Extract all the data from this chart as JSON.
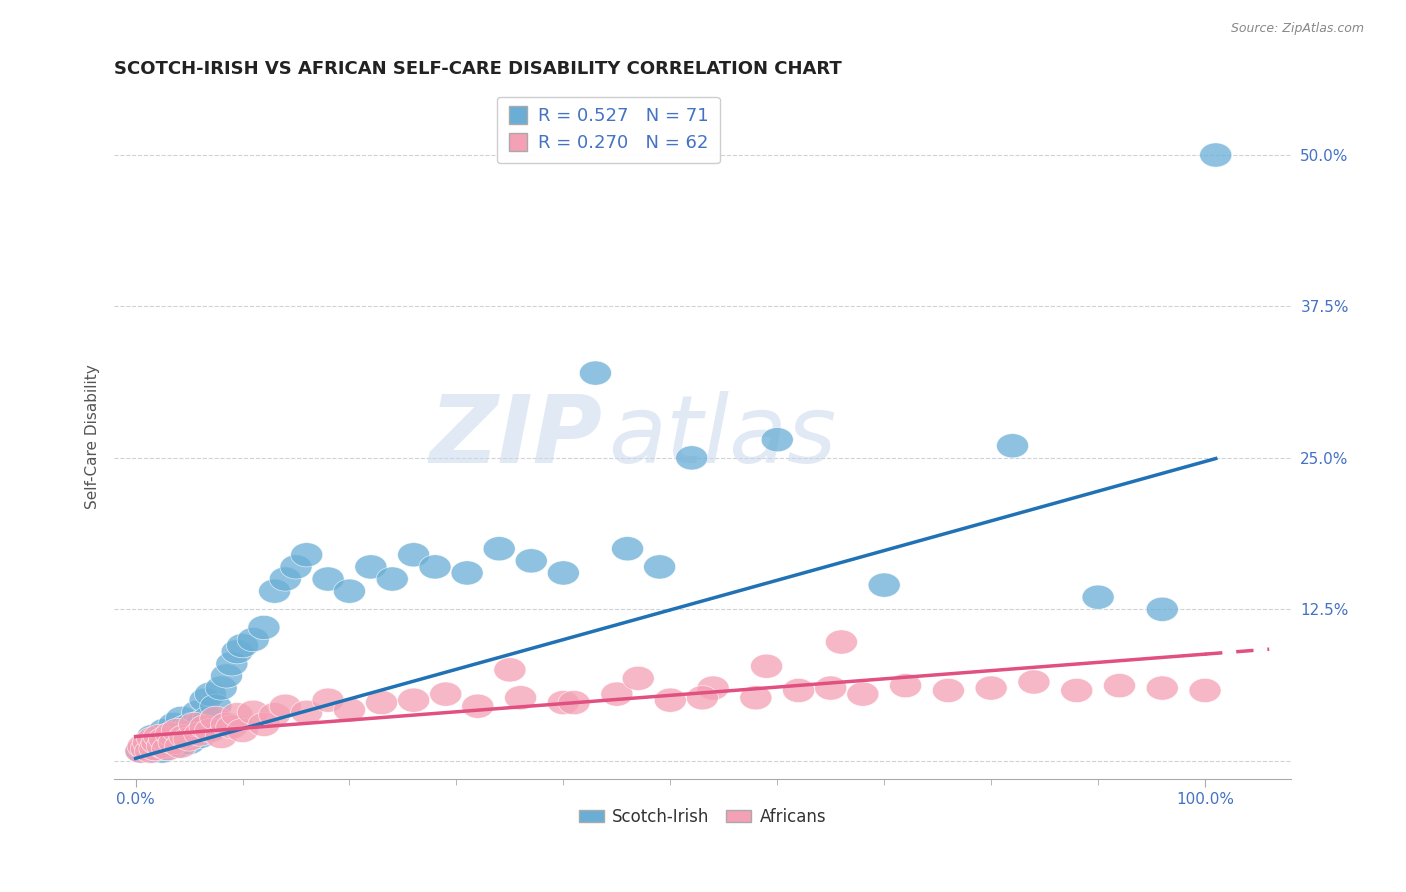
{
  "title": "SCOTCH-IRISH VS AFRICAN SELF-CARE DISABILITY CORRELATION CHART",
  "source": "Source: ZipAtlas.com",
  "ylabel": "Self-Care Disability",
  "yticks": [
    0.0,
    0.125,
    0.25,
    0.375,
    0.5
  ],
  "ytick_labels": [
    "",
    "12.5%",
    "25.0%",
    "37.5%",
    "50.0%"
  ],
  "xlim": [
    -0.02,
    1.08
  ],
  "ylim": [
    -0.015,
    0.55
  ],
  "blue_color": "#6aaed6",
  "pink_color": "#f4a0b5",
  "blue_line_color": "#2171b5",
  "pink_line_color": "#e05080",
  "watermark_zip": "ZIP",
  "watermark_atlas": "atlas",
  "title_fontsize": 13,
  "axis_label_fontsize": 11,
  "tick_fontsize": 11,
  "scotch_irish_x": [
    0.005,
    0.008,
    0.01,
    0.012,
    0.013,
    0.015,
    0.016,
    0.017,
    0.018,
    0.019,
    0.02,
    0.021,
    0.022,
    0.023,
    0.025,
    0.026,
    0.027,
    0.028,
    0.03,
    0.031,
    0.032,
    0.033,
    0.035,
    0.036,
    0.038,
    0.04,
    0.042,
    0.043,
    0.045,
    0.047,
    0.05,
    0.052,
    0.055,
    0.058,
    0.06,
    0.062,
    0.065,
    0.068,
    0.07,
    0.075,
    0.08,
    0.085,
    0.09,
    0.095,
    0.1,
    0.11,
    0.12,
    0.13,
    0.14,
    0.15,
    0.16,
    0.18,
    0.2,
    0.22,
    0.24,
    0.26,
    0.28,
    0.31,
    0.34,
    0.37,
    0.4,
    0.43,
    0.46,
    0.49,
    0.52,
    0.6,
    0.7,
    0.82,
    0.9,
    0.96,
    1.01
  ],
  "scotch_irish_y": [
    0.008,
    0.01,
    0.012,
    0.008,
    0.015,
    0.01,
    0.02,
    0.008,
    0.012,
    0.018,
    0.01,
    0.015,
    0.012,
    0.02,
    0.008,
    0.015,
    0.025,
    0.01,
    0.018,
    0.012,
    0.022,
    0.015,
    0.02,
    0.03,
    0.012,
    0.025,
    0.018,
    0.035,
    0.02,
    0.028,
    0.015,
    0.03,
    0.025,
    0.04,
    0.02,
    0.032,
    0.05,
    0.035,
    0.055,
    0.045,
    0.06,
    0.07,
    0.08,
    0.09,
    0.095,
    0.1,
    0.11,
    0.14,
    0.15,
    0.16,
    0.17,
    0.15,
    0.14,
    0.16,
    0.15,
    0.17,
    0.16,
    0.155,
    0.175,
    0.165,
    0.155,
    0.32,
    0.175,
    0.16,
    0.25,
    0.265,
    0.145,
    0.26,
    0.135,
    0.125,
    0.5
  ],
  "africans_x": [
    0.005,
    0.007,
    0.01,
    0.012,
    0.014,
    0.016,
    0.018,
    0.02,
    0.022,
    0.025,
    0.027,
    0.03,
    0.033,
    0.036,
    0.039,
    0.042,
    0.046,
    0.05,
    0.055,
    0.06,
    0.065,
    0.07,
    0.075,
    0.08,
    0.085,
    0.09,
    0.095,
    0.1,
    0.11,
    0.12,
    0.13,
    0.14,
    0.16,
    0.18,
    0.2,
    0.23,
    0.26,
    0.29,
    0.32,
    0.36,
    0.4,
    0.45,
    0.5,
    0.54,
    0.58,
    0.62,
    0.65,
    0.68,
    0.72,
    0.76,
    0.8,
    0.84,
    0.88,
    0.92,
    0.96,
    1.0,
    0.35,
    0.41,
    0.47,
    0.53,
    0.59,
    0.66
  ],
  "africans_y": [
    0.008,
    0.012,
    0.01,
    0.015,
    0.008,
    0.018,
    0.01,
    0.015,
    0.02,
    0.012,
    0.018,
    0.01,
    0.022,
    0.015,
    0.025,
    0.012,
    0.02,
    0.018,
    0.03,
    0.022,
    0.028,
    0.025,
    0.035,
    0.02,
    0.03,
    0.028,
    0.038,
    0.025,
    0.04,
    0.03,
    0.038,
    0.045,
    0.04,
    0.05,
    0.042,
    0.048,
    0.05,
    0.055,
    0.045,
    0.052,
    0.048,
    0.055,
    0.05,
    0.06,
    0.052,
    0.058,
    0.06,
    0.055,
    0.062,
    0.058,
    0.06,
    0.065,
    0.058,
    0.062,
    0.06,
    0.058,
    0.075,
    0.048,
    0.068,
    0.052,
    0.078,
    0.098
  ]
}
